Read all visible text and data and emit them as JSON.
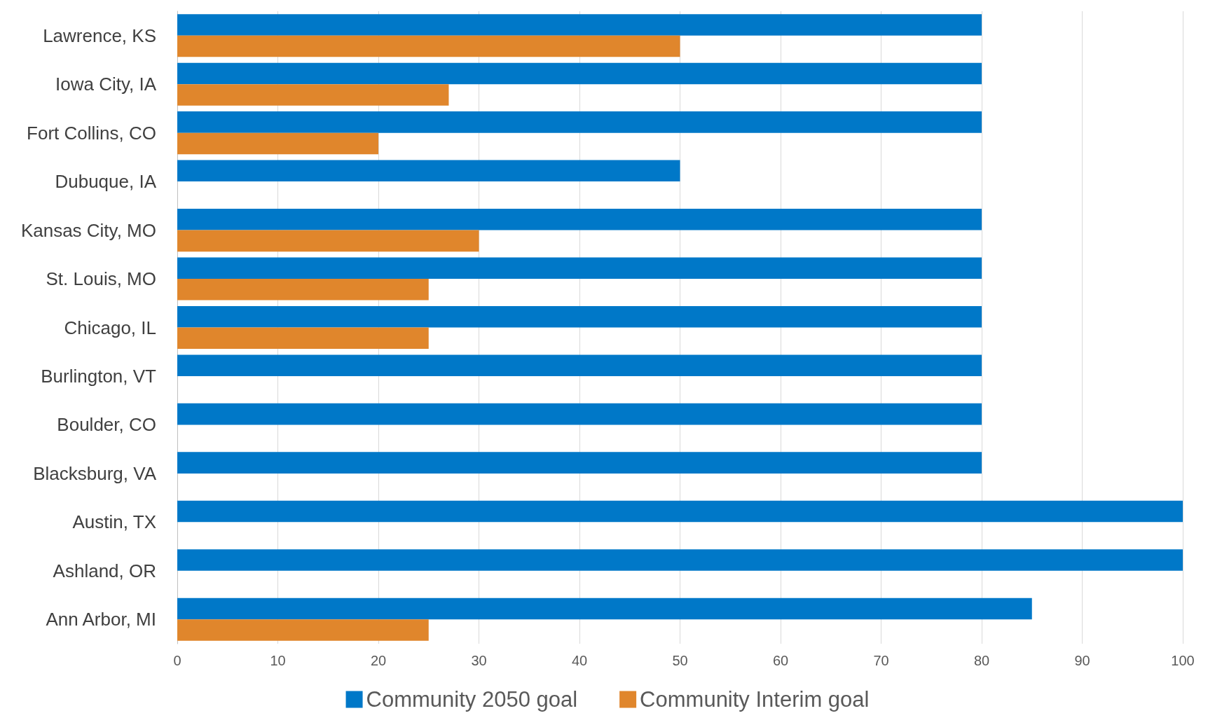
{
  "chart_data": {
    "type": "bar",
    "orientation": "horizontal",
    "categories": [
      "Lawrence, KS",
      "Iowa City, IA",
      "Fort Collins, CO",
      "Dubuque, IA",
      "Kansas City, MO",
      "St. Louis, MO",
      "Chicago, IL",
      "Burlington, VT",
      "Boulder, CO",
      "Blacksburg, VA",
      "Austin, TX",
      "Ashland, OR",
      "Ann Arbor, MI"
    ],
    "series": [
      {
        "name": "Community 2050 goal",
        "color": "#0078c8",
        "values": [
          80,
          80,
          80,
          50,
          80,
          80,
          80,
          80,
          80,
          80,
          100,
          100,
          85
        ]
      },
      {
        "name": "Community Interim goal",
        "color": "#e0862c",
        "values": [
          50,
          27,
          20,
          null,
          30,
          25,
          25,
          null,
          null,
          null,
          null,
          null,
          25
        ]
      }
    ],
    "xlim": [
      0,
      100
    ],
    "xticks": [
      0,
      10,
      20,
      30,
      40,
      50,
      60,
      70,
      80,
      90,
      100
    ],
    "grid": "x",
    "legend": "bottom"
  }
}
